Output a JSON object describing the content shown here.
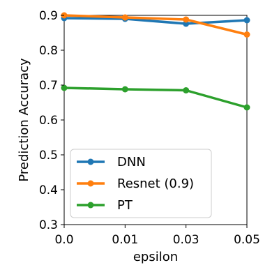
{
  "chart_data": {
    "type": "line",
    "categories": [
      "0.0",
      "0.01",
      "0.03",
      "0.05"
    ],
    "xlabel": "epsilon",
    "ylabel": "Prediction Accuracy",
    "ylim": [
      0.3,
      0.9
    ],
    "yticks": [
      "0.3",
      "0.4",
      "0.5",
      "0.6",
      "0.7",
      "0.8",
      "0.9"
    ],
    "legend_position": "lower-left",
    "grid": false,
    "series": [
      {
        "name": "DNN",
        "color": "#1f77b4",
        "values": [
          0.892,
          0.89,
          0.876,
          0.886
        ]
      },
      {
        "name": "Resnet (0.9)",
        "color": "#ff7f0e",
        "values": [
          0.9,
          0.894,
          0.888,
          0.845
        ]
      },
      {
        "name": "PT",
        "color": "#2ca02c",
        "values": [
          0.692,
          0.688,
          0.685,
          0.636
        ]
      }
    ]
  }
}
